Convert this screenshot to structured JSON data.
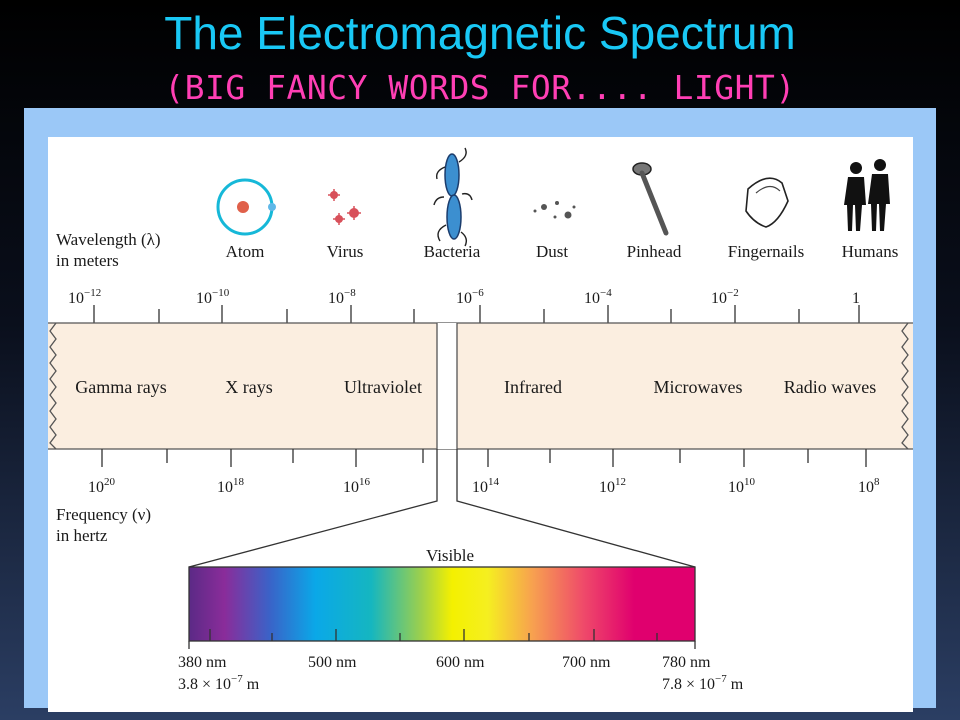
{
  "slide": {
    "title": "The Electromagnetic Spectrum",
    "subtitle": "(BIG FANCY WORDS FOR.... LIGHT)"
  },
  "colors": {
    "title": "#19c8f5",
    "subtitle": "#ff3fb4",
    "frame": "#9bc8f7",
    "band": "#fbeee0"
  },
  "wavelength_axis": {
    "label_line1": "Wavelength (λ)",
    "label_line2": "in meters",
    "ticks": [
      {
        "base": "10",
        "exp": "−12"
      },
      {
        "base": "10",
        "exp": "−10"
      },
      {
        "base": "10",
        "exp": "−8"
      },
      {
        "base": "10",
        "exp": "−6"
      },
      {
        "base": "10",
        "exp": "−4"
      },
      {
        "base": "10",
        "exp": "−2"
      },
      {
        "base": "1",
        "exp": ""
      }
    ]
  },
  "objects": [
    {
      "label": "Atom",
      "icon": "atom-icon"
    },
    {
      "label": "Virus",
      "icon": "virus-icon"
    },
    {
      "label": "Bacteria",
      "icon": "bacteria-icon"
    },
    {
      "label": "Dust",
      "icon": "dust-icon"
    },
    {
      "label": "Pinhead",
      "icon": "pinhead-icon"
    },
    {
      "label": "Fingernails",
      "icon": "fingernail-icon"
    },
    {
      "label": "Humans",
      "icon": "humans-icon"
    }
  ],
  "bands": [
    "Gamma rays",
    "X rays",
    "Ultraviolet",
    "Infrared",
    "Microwaves",
    "Radio waves"
  ],
  "frequency_axis": {
    "label_line1": "Frequency (ν)",
    "label_line2": "in hertz",
    "ticks": [
      {
        "base": "10",
        "exp": "20"
      },
      {
        "base": "10",
        "exp": "18"
      },
      {
        "base": "10",
        "exp": "16"
      },
      {
        "base": "10",
        "exp": "14"
      },
      {
        "base": "10",
        "exp": "12"
      },
      {
        "base": "10",
        "exp": "10"
      },
      {
        "base": "10",
        "exp": "8"
      }
    ]
  },
  "visible": {
    "label": "Visible",
    "ticks": [
      "380 nm",
      "500 nm",
      "600 nm",
      "700 nm",
      "780 nm"
    ],
    "left_sci_line": {
      "pre": "3.8 × 10",
      "exp": "−7",
      "post": " m"
    },
    "right_sci_line": {
      "pre": "7.8 × 10",
      "exp": "−7",
      "post": " m"
    }
  }
}
